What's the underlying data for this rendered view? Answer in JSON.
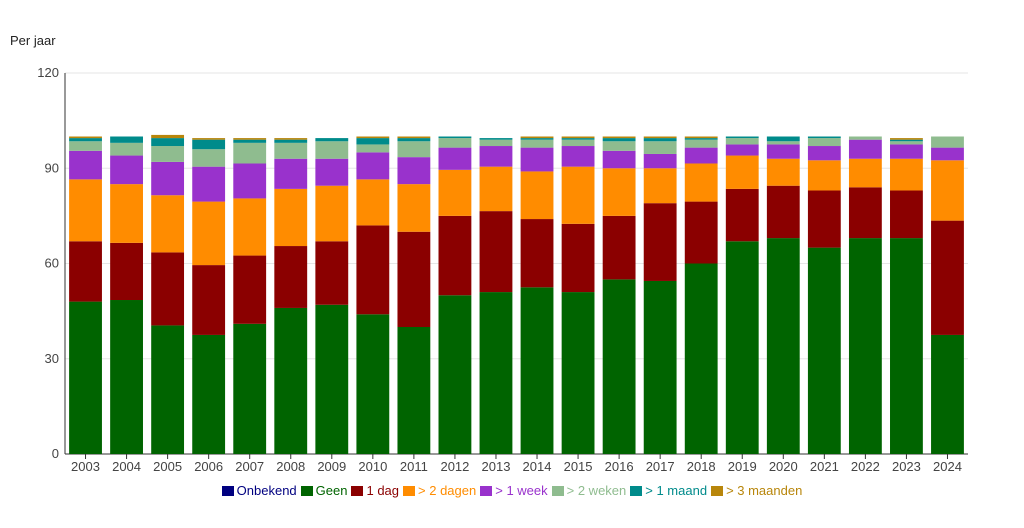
{
  "title": "Per jaar",
  "chart_data": {
    "type": "bar",
    "stacked": true,
    "title": "Per jaar",
    "xlabel": "",
    "ylabel": "",
    "ylim": [
      0,
      120
    ],
    "yticks": [
      0,
      30,
      60,
      90,
      120
    ],
    "grid": true,
    "legend_position": "bottom",
    "categories": [
      "2003",
      "2004",
      "2005",
      "2006",
      "2007",
      "2008",
      "2009",
      "2010",
      "2011",
      "2012",
      "2013",
      "2014",
      "2015",
      "2016",
      "2017",
      "2018",
      "2019",
      "2020",
      "2021",
      "2022",
      "2023",
      "2024"
    ],
    "series": [
      {
        "name": "Onbekend",
        "color": "#000080",
        "text_color": "#000080",
        "values": [
          0,
          0,
          0,
          0,
          0,
          0,
          0,
          0,
          0,
          0,
          0,
          0,
          0,
          0,
          0,
          0,
          0,
          0,
          0,
          0,
          0,
          0
        ]
      },
      {
        "name": "Geen",
        "color": "#006400",
        "text_color": "#006400",
        "values": [
          48,
          48.5,
          40.5,
          37.5,
          41,
          46,
          47,
          44,
          40,
          50,
          51,
          52.5,
          51,
          55,
          54.5,
          60,
          67,
          68,
          65,
          68,
          68,
          37.5
        ]
      },
      {
        "name": "1 dag",
        "color": "#8b0000",
        "text_color": "#8b0000",
        "values": [
          19,
          18,
          23,
          22,
          21.5,
          19.5,
          20,
          28,
          30,
          25,
          25.5,
          21.5,
          21.5,
          20,
          24.5,
          19.5,
          16.5,
          16.5,
          18,
          16,
          15,
          36
        ]
      },
      {
        "name": "> 2 dagen",
        "color": "#ff8c00",
        "text_color": "#ff8c00",
        "values": [
          19.5,
          18.5,
          18,
          20,
          18,
          18,
          17.5,
          14.5,
          15,
          14.5,
          14,
          15,
          18,
          15,
          11,
          12,
          10.5,
          8.5,
          9.5,
          9,
          10,
          19
        ]
      },
      {
        "name": "> 1 week",
        "color": "#9932cc",
        "text_color": "#9932cc",
        "values": [
          9,
          9,
          10.5,
          11,
          11,
          9.5,
          8.5,
          8.5,
          8.5,
          7,
          6.5,
          7.5,
          6.5,
          5.5,
          4.5,
          5,
          3.5,
          4.5,
          4.5,
          6,
          4.5,
          4
        ]
      },
      {
        "name": "> 2 weken",
        "color": "#8fbc8f",
        "text_color": "#8fbc8f",
        "values": [
          3,
          4,
          5,
          5.5,
          6.5,
          5,
          5.5,
          2.5,
          5,
          3,
          2,
          2.5,
          2,
          3,
          4,
          2.5,
          2,
          1,
          2.5,
          1,
          1,
          3.5
        ]
      },
      {
        "name": "> 1 maand",
        "color": "#008b8b",
        "text_color": "#008b8b",
        "values": [
          1,
          2,
          2.5,
          3,
          1,
          1,
          1,
          2,
          1,
          0.5,
          0.5,
          0.5,
          0.5,
          1,
          1,
          0.5,
          0.5,
          1.5,
          0.5,
          0,
          0.5,
          0
        ]
      },
      {
        "name": "> 3 maanden",
        "color": "#b8860b",
        "text_color": "#b8860b",
        "values": [
          0.5,
          0,
          1,
          0.5,
          0.5,
          0.5,
          0,
          0.5,
          0.5,
          0,
          0,
          0.5,
          0.5,
          0.5,
          0.5,
          0.5,
          0,
          0,
          0,
          0,
          0.5,
          0
        ]
      }
    ]
  }
}
